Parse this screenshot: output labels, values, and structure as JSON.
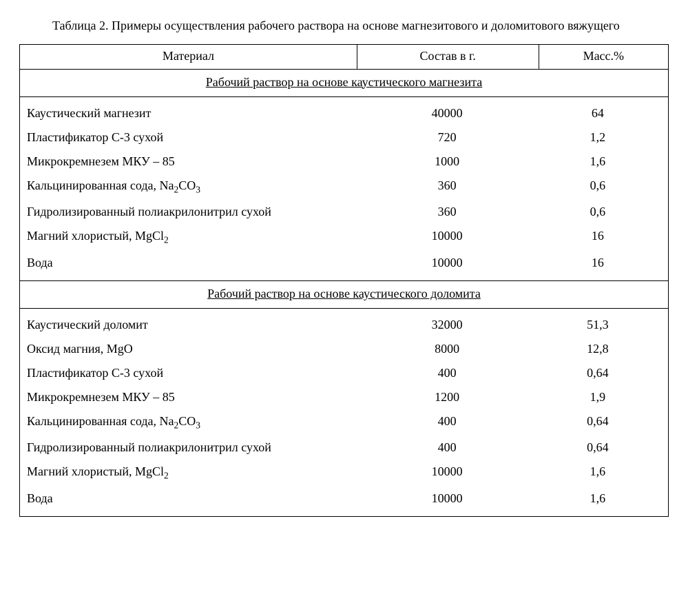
{
  "caption": "Таблица 2. Примеры осуществления рабочего раствора на основе магнезитового и доломитового вяжущего",
  "headers": {
    "material": "Материал",
    "composition": "Состав в г.",
    "mass": "Масс.%"
  },
  "sections": [
    {
      "title": "Рабочий раствор на основе каустического магнезита",
      "rows": [
        {
          "material": "Каустический магнезит",
          "composition": "40000",
          "mass": "64"
        },
        {
          "material": "Пластификатор С-3 сухой",
          "composition": "720",
          "mass": "1,2"
        },
        {
          "material": "Микрокремнезем МКУ – 85",
          "composition": "1000",
          "mass": "1,6"
        },
        {
          "material_html": "Кальцинированная сода, Na<sub>2</sub>CO<sub>3</sub>",
          "composition": "360",
          "mass": "0,6"
        },
        {
          "material": "Гидролизированный полиакрилонитрил сухой",
          "composition": "360",
          "mass": "0,6"
        },
        {
          "material_html": "Магний хлористый, MgCl<sub>2</sub>",
          "composition": "10000",
          "mass": "16"
        },
        {
          "material": "Вода",
          "composition": "10000",
          "mass": "16"
        }
      ]
    },
    {
      "title": "Рабочий раствор на основе каустического доломита",
      "rows": [
        {
          "material": "Каустический доломит",
          "composition": "32000",
          "mass": "51,3"
        },
        {
          "material": "Оксид магния, MgO",
          "composition": "8000",
          "mass": "12,8"
        },
        {
          "material": "Пластификатор С-3 сухой",
          "composition": "400",
          "mass": "0,64"
        },
        {
          "material": "Микрокремнезем МКУ – 85",
          "composition": "1200",
          "mass": "1,9"
        },
        {
          "material_html": "Кальцинированная сода, Na<sub>2</sub>CO<sub>3</sub>",
          "composition": "400",
          "mass": "0,64"
        },
        {
          "material": "Гидролизированный полиакрилонитрил сухой",
          "composition": "400",
          "mass": "0,64"
        },
        {
          "material_html": "Магний хлористый, MgCl<sub>2</sub>",
          "composition": "10000",
          "mass": "1,6"
        },
        {
          "material": "Вода",
          "composition": "10000",
          "mass": "1,6"
        }
      ]
    }
  ]
}
